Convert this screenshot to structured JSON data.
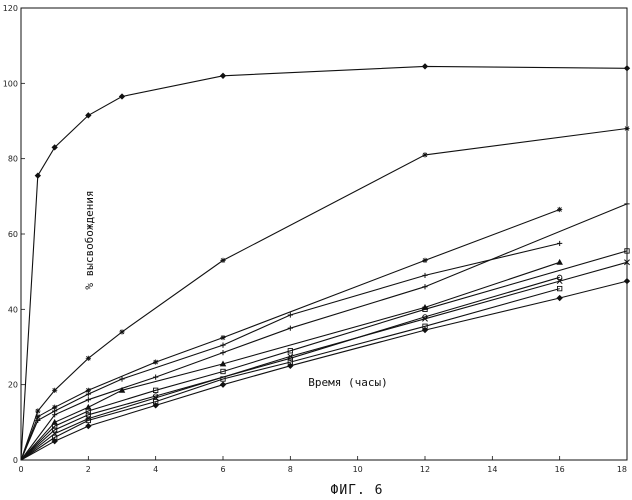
{
  "chart_data": {
    "type": "line",
    "title": "",
    "caption": "ФИГ. 6",
    "xlabel": "Время (часы)",
    "ylabel": "% высвобождения",
    "xlim": [
      0,
      18
    ],
    "ylim": [
      0,
      120
    ],
    "xticks": [
      "0",
      "2",
      "4",
      "6",
      "8",
      "10",
      "12",
      "14",
      "16",
      "18"
    ],
    "yticks": [
      "0",
      "20",
      "40",
      "60",
      "80",
      "100",
      "120"
    ],
    "grid": false,
    "legend": "none",
    "series": [
      {
        "marker": "diamond",
        "x": [
          0,
          0.5,
          1,
          2,
          3,
          6,
          12,
          18
        ],
        "y": [
          0,
          75.5,
          83,
          91.5,
          96.5,
          102,
          104.5,
          104
        ]
      },
      {
        "marker": "star",
        "x": [
          0,
          0.5,
          1,
          2,
          3,
          6,
          12,
          18
        ],
        "y": [
          0,
          13,
          18.5,
          27,
          34,
          53,
          81,
          88
        ]
      },
      {
        "marker": "star",
        "x": [
          0,
          0.5,
          1,
          2,
          4,
          6,
          12,
          16
        ],
        "y": [
          0,
          11.5,
          14,
          18.5,
          26,
          32.5,
          53,
          66.5
        ]
      },
      {
        "marker": "plus",
        "x": [
          0,
          0.5,
          1,
          2,
          3,
          6,
          8,
          12,
          16
        ],
        "y": [
          0,
          10.5,
          13,
          17.5,
          21.5,
          30.5,
          38.5,
          49,
          57.5
        ]
      },
      {
        "marker": "plus",
        "x": [
          0,
          1,
          2,
          4,
          6,
          8,
          12,
          18
        ],
        "y": [
          0,
          12,
          16,
          22,
          28.5,
          35,
          46,
          68
        ]
      },
      {
        "marker": "triangle",
        "x": [
          0,
          1,
          2,
          3,
          6,
          12,
          16
        ],
        "y": [
          0,
          10,
          14,
          18.5,
          25.5,
          40.5,
          52.5
        ]
      },
      {
        "marker": "square",
        "x": [
          0,
          1,
          2,
          4,
          6,
          8,
          12,
          18
        ],
        "y": [
          0,
          9,
          13,
          18.5,
          23.5,
          29,
          40,
          55.5
        ]
      },
      {
        "marker": "circle",
        "x": [
          0,
          1,
          2,
          4,
          8,
          12,
          16
        ],
        "y": [
          0,
          8,
          12,
          17,
          27,
          38,
          48.5
        ]
      },
      {
        "marker": "x",
        "x": [
          0,
          1,
          2,
          4,
          8,
          12,
          16,
          18
        ],
        "y": [
          0,
          7,
          11,
          16.5,
          27.5,
          37.5,
          47.5,
          52.5
        ]
      },
      {
        "marker": "square",
        "x": [
          0,
          1,
          2,
          4,
          6,
          8,
          12,
          16
        ],
        "y": [
          0,
          6,
          10.5,
          15.5,
          21.5,
          26,
          35.5,
          45.5
        ]
      },
      {
        "marker": "diamond",
        "x": [
          0,
          1,
          2,
          4,
          6,
          8,
          12,
          16,
          18
        ],
        "y": [
          0,
          5,
          9,
          14.5,
          20,
          25,
          34.5,
          43,
          47.5
        ]
      }
    ]
  }
}
